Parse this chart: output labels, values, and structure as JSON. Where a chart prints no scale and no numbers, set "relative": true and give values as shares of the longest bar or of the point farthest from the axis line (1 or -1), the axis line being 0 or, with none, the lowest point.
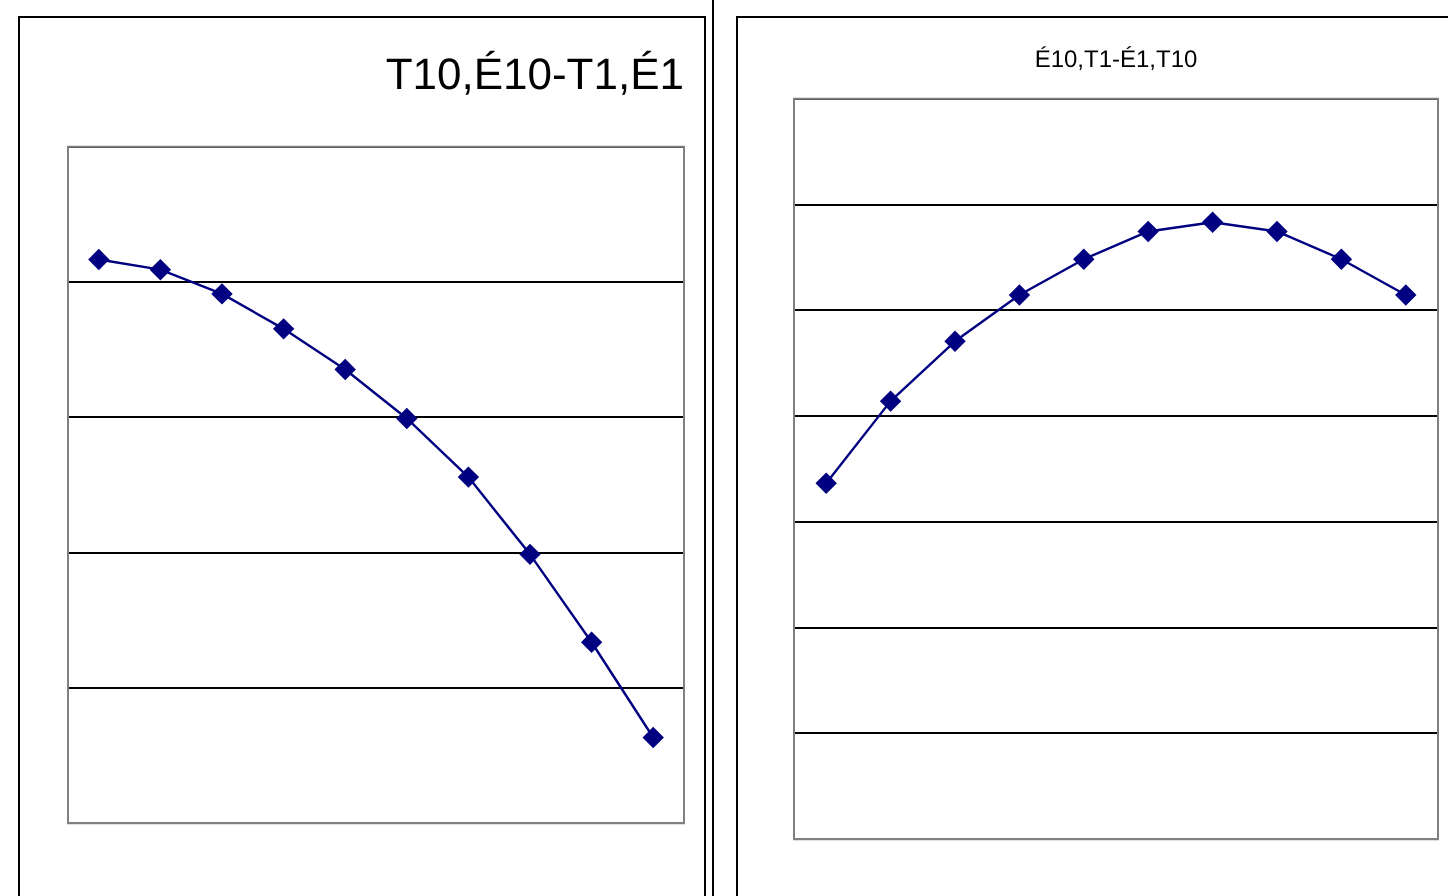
{
  "chart_data": [
    {
      "type": "line",
      "title": "T10,É10-T1,É1",
      "categories": [
        null,
        null,
        null,
        null,
        null,
        null,
        null,
        null,
        null,
        null
      ],
      "relative": true,
      "grid": "y",
      "marker": "diamond",
      "legend": false,
      "series": [
        {
          "color": "#000080",
          "values": [
            1,
            0.982,
            0.939,
            0.877,
            0.805,
            0.718,
            0.614,
            0.477,
            0.321,
            0.152
          ]
        }
      ]
    },
    {
      "type": "line",
      "title": "É10,T1-É1,T10",
      "categories": [
        null,
        null,
        null,
        null,
        null,
        null,
        null,
        null,
        null,
        null
      ],
      "relative": true,
      "grid": "y",
      "marker": "diamond",
      "legend": false,
      "series": [
        {
          "color": "#000080",
          "values": [
            0.577,
            0.71,
            0.807,
            0.882,
            0.94,
            0.985,
            1,
            0.985,
            0.94,
            0.882
          ]
        }
      ]
    }
  ]
}
